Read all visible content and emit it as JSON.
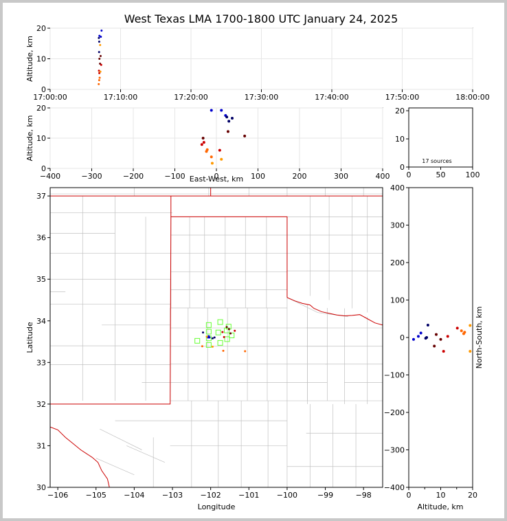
{
  "chart_data": [
    {
      "type": "scatter",
      "name": "altitude-vs-time",
      "title": "West Texas LMA 1700-1800 UTC January 24, 2025",
      "ylabel": "Altitude, km",
      "xlim": [
        "17:00:00",
        "18:00:00"
      ],
      "ylim": [
        0,
        20
      ],
      "xticks": [
        "17:00:00",
        "17:10:00",
        "17:20:00",
        "17:30:00",
        "17:40:00",
        "17:50:00",
        "18:00:00"
      ],
      "yticks": [
        0,
        10,
        20
      ],
      "grid": true,
      "points": [
        {
          "x": "17:07:18",
          "y": 19.2
        },
        {
          "x": "17:07:00",
          "y": 17.5
        },
        {
          "x": "17:07:12",
          "y": 17.2
        },
        {
          "x": "17:06:55",
          "y": 16.8
        },
        {
          "x": "17:06:58",
          "y": 15.6
        },
        {
          "x": "17:06:57",
          "y": 12.2
        },
        {
          "x": "17:07:10",
          "y": 10.9
        },
        {
          "x": "17:07:00",
          "y": 10.0
        },
        {
          "x": "17:07:05",
          "y": 8.4
        },
        {
          "x": "17:07:15",
          "y": 8.0
        },
        {
          "x": "17:06:56",
          "y": 6.1
        },
        {
          "x": "17:06:59",
          "y": 5.3
        },
        {
          "x": "17:07:02",
          "y": 3.8
        },
        {
          "x": "17:06:58",
          "y": 3.0
        },
        {
          "x": "17:06:54",
          "y": 1.7
        },
        {
          "x": "17:07:06",
          "y": 14.5
        },
        {
          "x": "17:07:08",
          "y": 5.8
        }
      ]
    },
    {
      "type": "scatter",
      "name": "altitude-vs-east-west",
      "xlabel": "East-West, km",
      "ylabel": "Altitude, km",
      "xlim": [
        -400,
        400
      ],
      "ylim": [
        0,
        20
      ],
      "xticks": [
        -400,
        -300,
        -200,
        -100,
        0,
        100,
        200,
        300,
        400
      ],
      "yticks": [
        0,
        10,
        20
      ],
      "grid": true,
      "points": [
        {
          "x": -12,
          "y": 19.2
        },
        {
          "x": 12,
          "y": 19.2
        },
        {
          "x": 22,
          "y": 17.5
        },
        {
          "x": 25,
          "y": 17.0
        },
        {
          "x": 38,
          "y": 16.6
        },
        {
          "x": 30,
          "y": 15.6
        },
        {
          "x": 28,
          "y": 12.2
        },
        {
          "x": 68,
          "y": 10.7
        },
        {
          "x": -32,
          "y": 10.0
        },
        {
          "x": -30,
          "y": 8.6
        },
        {
          "x": -35,
          "y": 7.9
        },
        {
          "x": 8,
          "y": 6.0
        },
        {
          "x": -24,
          "y": 5.6
        },
        {
          "x": -22,
          "y": 6.2
        },
        {
          "x": -12,
          "y": 3.8
        },
        {
          "x": 12,
          "y": 3.0
        },
        {
          "x": -10,
          "y": 1.7
        }
      ]
    },
    {
      "type": "bar",
      "name": "source-count-histogram",
      "xlim": [
        0,
        100
      ],
      "ylim": [
        0,
        21
      ],
      "xticks": [
        0,
        50,
        100
      ],
      "yticks": [
        0,
        10,
        20
      ],
      "annotation": "17 sources",
      "values": []
    },
    {
      "type": "scatter",
      "name": "plan-view-map",
      "xlabel": "Longitude",
      "ylabel": "Latitude",
      "xlim": [
        -106.2,
        -97.5
      ],
      "ylim": [
        30,
        37.2
      ],
      "xticks": [
        -106,
        -105,
        -104,
        -103,
        -102,
        -101,
        -100,
        -99,
        -98
      ],
      "yticks": [
        30,
        31,
        32,
        33,
        34,
        35,
        36,
        37
      ],
      "stations": [
        {
          "lon": -101.75,
          "lat": 33.97
        },
        {
          "lon": -101.53,
          "lat": 33.86
        },
        {
          "lon": -102.05,
          "lat": 33.9
        },
        {
          "lon": -101.58,
          "lat": 33.77
        },
        {
          "lon": -102.05,
          "lat": 33.74
        },
        {
          "lon": -101.8,
          "lat": 33.72
        },
        {
          "lon": -101.45,
          "lat": 33.65
        },
        {
          "lon": -102.05,
          "lat": 33.58
        },
        {
          "lon": -101.57,
          "lat": 33.56
        },
        {
          "lon": -102.35,
          "lat": 33.52
        },
        {
          "lon": -101.75,
          "lat": 33.47
        },
        {
          "lon": -102.05,
          "lat": 33.42
        }
      ],
      "points": [
        {
          "lon": -102.07,
          "lat": 33.6
        },
        {
          "lon": -102.05,
          "lat": 33.63
        },
        {
          "lon": -102.03,
          "lat": 33.6
        },
        {
          "lon": -101.95,
          "lat": 33.58
        },
        {
          "lon": -102.2,
          "lat": 33.72
        },
        {
          "lon": -101.9,
          "lat": 33.6
        },
        {
          "lon": -101.58,
          "lat": 33.85
        },
        {
          "lon": -101.52,
          "lat": 33.8
        },
        {
          "lon": -101.48,
          "lat": 33.7
        },
        {
          "lon": -101.37,
          "lat": 33.76
        },
        {
          "lon": -101.69,
          "lat": 33.73
        },
        {
          "lon": -101.65,
          "lat": 33.61
        },
        {
          "lon": -102.22,
          "lat": 33.39
        },
        {
          "lon": -101.67,
          "lat": 33.28
        },
        {
          "lon": -101.1,
          "lat": 33.27
        },
        {
          "lon": -101.95,
          "lat": 33.38
        },
        {
          "lon": -102.1,
          "lat": 33.62
        }
      ]
    },
    {
      "type": "scatter",
      "name": "north-south-vs-altitude",
      "xlabel": "Altitude, km",
      "ylabel": "North-South, km",
      "xlim": [
        0,
        20
      ],
      "ylim": [
        -400,
        400
      ],
      "xticks": [
        0,
        5,
        10,
        15,
        20
      ],
      "yticks": [
        -400,
        -300,
        -200,
        -100,
        0,
        100,
        200,
        300,
        400
      ],
      "grid": false,
      "points": [
        {
          "x": 1.5,
          "y": -5
        },
        {
          "x": 3.0,
          "y": 3
        },
        {
          "x": 3.8,
          "y": 12
        },
        {
          "x": 5.3,
          "y": -2
        },
        {
          "x": 5.6,
          "y": 0
        },
        {
          "x": 6.0,
          "y": 33
        },
        {
          "x": 8.0,
          "y": -23
        },
        {
          "x": 8.6,
          "y": 8
        },
        {
          "x": 10.0,
          "y": -5
        },
        {
          "x": 10.9,
          "y": -37
        },
        {
          "x": 12.2,
          "y": 3
        },
        {
          "x": 15.2,
          "y": 25
        },
        {
          "x": 16.5,
          "y": 18
        },
        {
          "x": 17.2,
          "y": 10
        },
        {
          "x": 17.5,
          "y": 14
        },
        {
          "x": 19.2,
          "y": 32
        },
        {
          "x": 19.2,
          "y": -37
        }
      ]
    }
  ],
  "colors": {
    "border": "#cc0000",
    "county": "#c0c0c0",
    "station": "#66ff33",
    "grid": "#e6e6e6",
    "time_ramp": [
      "#0000cc",
      "#000066",
      "#660000",
      "#cc0000",
      "#ff6600",
      "#ff9900"
    ]
  }
}
